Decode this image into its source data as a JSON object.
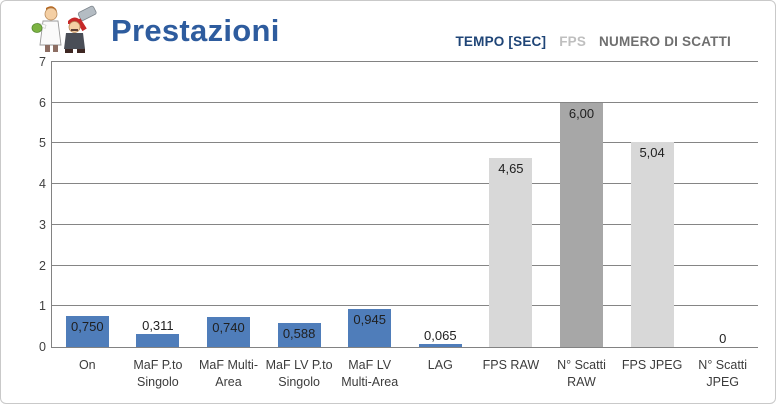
{
  "header": {
    "logo_alt": "mascot-two-cartoon-characters"
  },
  "colors": {
    "title_blue": "#2e5c9e",
    "bar_blue": "#4f7dba",
    "bar_light_gray": "#d8d8d8",
    "bar_mid_gray": "#a7a7a7",
    "gridline_gray": "#858585",
    "outer_border_gray": "#c9c9c9",
    "axis_label_gray": "#404040",
    "data_label_dark": "#1f1f1f"
  },
  "chart_data": {
    "type": "bar",
    "title": "Prestazioni",
    "categories": [
      "On",
      "MaF P.to\nSingolo",
      "MaF Multi-\nArea",
      "MaF LV P.to\nSingolo",
      "MaF LV\nMulti-Area",
      "LAG",
      "FPS RAW",
      "N° Scatti\nRAW",
      "FPS JPEG",
      "N° Scatti\nJPEG"
    ],
    "values": [
      0.75,
      0.311,
      0.74,
      0.588,
      0.945,
      0.065,
      4.65,
      6.0,
      5.04,
      0
    ],
    "value_labels": [
      "0,750",
      "0,311",
      "0,740",
      "0,588",
      "0,945",
      "0,065",
      "4,65",
      "6,00",
      "5,04",
      "0"
    ],
    "series_of_bar": [
      "tempo",
      "tempo",
      "tempo",
      "tempo",
      "tempo",
      "tempo",
      "fps",
      "scatti",
      "fps",
      "scatti"
    ],
    "series": [
      {
        "id": "tempo",
        "name": "TEMPO [SEC]",
        "color": "#4f7dba",
        "text_color": "#1f4577"
      },
      {
        "id": "fps",
        "name": "FPS",
        "color": "#d8d8d8",
        "text_color": "#bfbfbf"
      },
      {
        "id": "scatti",
        "name": "NUMERO DI SCATTI",
        "color": "#a7a7a7",
        "text_color": "#6f6f6f"
      }
    ],
    "xlabel": "",
    "ylabel": "",
    "ylim": [
      0,
      7
    ],
    "yticks": [
      0,
      1,
      2,
      3,
      4,
      5,
      6,
      7
    ],
    "grid": true,
    "legend_position": "top-right"
  }
}
